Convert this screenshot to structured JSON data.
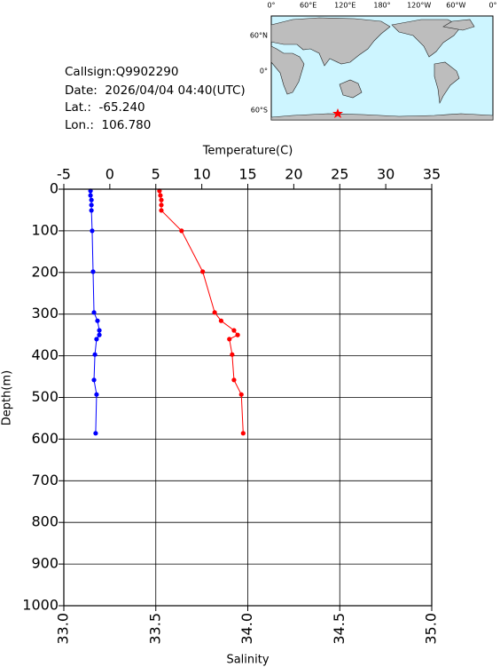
{
  "info": {
    "callsign": "Callsign:Q9902290",
    "date": "Date:  2026/04/04 04:40(UTC)",
    "lat": "Lat.:  -65.240",
    "lon": "Lon.:  106.780"
  },
  "map": {
    "lon_labels": [
      "0°",
      "60°E",
      "120°E",
      "180°",
      "120°W",
      "60°W",
      "0°"
    ],
    "lat_labels": [
      "60°N",
      "0°",
      "60°S"
    ]
  },
  "chart_data": {
    "type": "profile",
    "y_label": "Depth(m)",
    "ylim": [
      0,
      1000
    ],
    "yticks": [
      0,
      100,
      200,
      300,
      400,
      500,
      600,
      700,
      800,
      900,
      1000
    ],
    "grid": true,
    "depths": [
      4,
      15,
      26,
      38,
      51,
      100,
      198,
      296,
      316,
      339,
      350,
      360,
      397,
      458,
      493,
      586
    ],
    "series": [
      {
        "name": "Temperature(C)",
        "color": "#ff0000",
        "axis": "top",
        "xlim": [
          -5,
          35
        ],
        "xticks": [
          -5,
          0,
          5,
          10,
          15,
          20,
          25,
          30,
          35
        ],
        "values": [
          5.4,
          5.5,
          5.6,
          5.6,
          5.6,
          7.8,
          10.1,
          11.4,
          12.1,
          13.5,
          13.9,
          13.0,
          13.3,
          13.5,
          14.3,
          14.5
        ]
      },
      {
        "name": "Salinity",
        "color": "#0000ff",
        "axis": "bottom",
        "xlim": [
          33,
          35
        ],
        "xticks": [
          {
            "value": 33,
            "label": "33.0"
          },
          33.5,
          {
            "value": 34,
            "label": "34.0"
          },
          34.5,
          {
            "value": 35,
            "label": "35.0"
          }
        ],
        "values": [
          33.145,
          33.145,
          33.15,
          33.15,
          33.15,
          33.154,
          33.159,
          33.164,
          33.183,
          33.193,
          33.193,
          33.178,
          33.169,
          33.164,
          33.178,
          33.173
        ]
      }
    ]
  }
}
